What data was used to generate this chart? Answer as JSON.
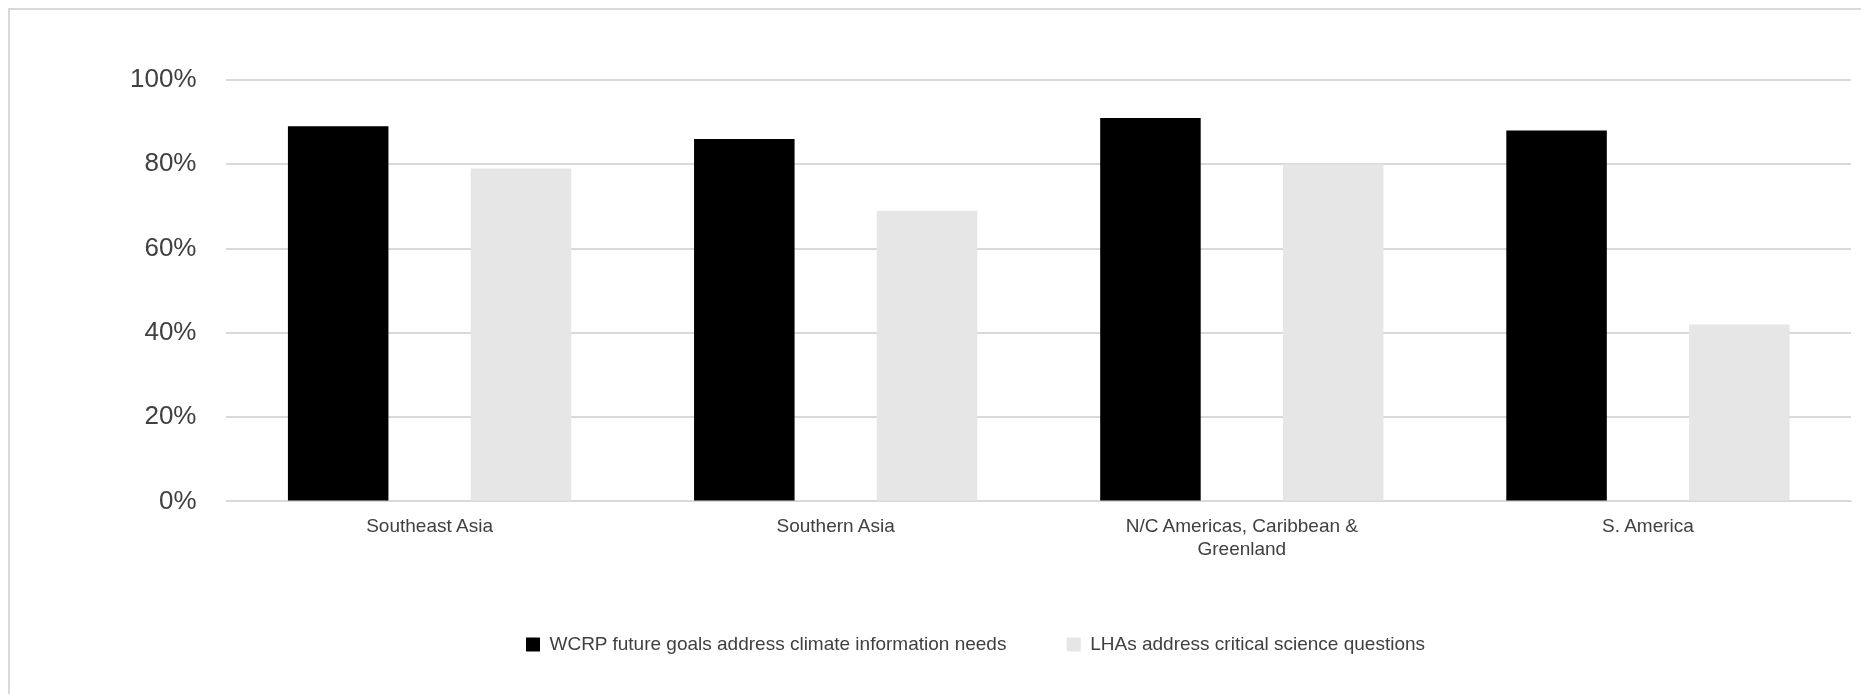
{
  "chart_data": {
    "type": "bar",
    "categories": [
      "Southeast Asia",
      "Southern Asia",
      "N/C Americas, Caribbean & Greenland",
      "S. America"
    ],
    "series": [
      {
        "name": "WCRP future goals address climate information needs",
        "color": "#000000",
        "values": [
          89,
          86,
          91,
          88
        ]
      },
      {
        "name": "LHAs address critical science questions",
        "color": "#e7e6e6",
        "values": [
          79,
          69,
          80,
          42
        ]
      }
    ],
    "ylim": [
      0,
      100
    ],
    "yticks": [
      {
        "value": 0,
        "label": "0%"
      },
      {
        "value": 20,
        "label": "20%"
      },
      {
        "value": 40,
        "label": "40%"
      },
      {
        "value": 60,
        "label": "60%"
      },
      {
        "value": 80,
        "label": "80%"
      },
      {
        "value": 100,
        "label": "100%"
      }
    ],
    "grid": "y",
    "legend": "bottom"
  }
}
